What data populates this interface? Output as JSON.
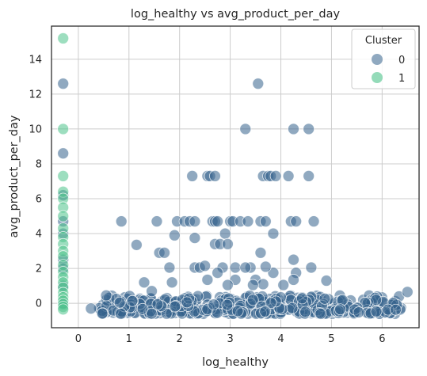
{
  "chart_data": {
    "type": "scatter",
    "title": "log_healthy vs avg_product_per_day",
    "xlabel": "log_healthy",
    "ylabel": "avg_product_per_day",
    "xlim": [
      -0.53,
      6.73
    ],
    "ylim": [
      -1.4,
      15.9
    ],
    "xticks": [
      "0",
      "1",
      "2",
      "3",
      "4",
      "5",
      "6"
    ],
    "yticks": [
      "0",
      "2",
      "4",
      "6",
      "8",
      "10",
      "12",
      "14"
    ],
    "grid": true,
    "legend": {
      "title": "Cluster",
      "placement": "top-right",
      "entries": [
        "0",
        "1"
      ]
    },
    "series": [
      {
        "name": "0",
        "color": "#35628c",
        "points": [
          [
            -0.3,
            12.6
          ],
          [
            -0.3,
            8.6
          ],
          [
            -0.3,
            6.2
          ],
          [
            -0.3,
            4.7
          ],
          [
            -0.3,
            4.0
          ],
          [
            -0.3,
            2.5
          ],
          [
            -0.3,
            2.0
          ],
          [
            -0.3,
            1.0
          ],
          [
            -0.3,
            0.0
          ],
          [
            0.55,
            0.45
          ],
          [
            0.85,
            4.7
          ],
          [
            1.15,
            3.35
          ],
          [
            1.3,
            1.2
          ],
          [
            1.55,
            4.7
          ],
          [
            1.6,
            2.9
          ],
          [
            1.7,
            2.9
          ],
          [
            1.8,
            2.05
          ],
          [
            1.85,
            1.2
          ],
          [
            1.9,
            3.9
          ],
          [
            1.95,
            4.7
          ],
          [
            2.1,
            4.7
          ],
          [
            2.2,
            4.7
          ],
          [
            2.3,
            3.75
          ],
          [
            2.3,
            4.7
          ],
          [
            2.25,
            7.3
          ],
          [
            2.3,
            2.05
          ],
          [
            2.4,
            2.05
          ],
          [
            2.55,
            7.3
          ],
          [
            2.6,
            7.3
          ],
          [
            2.65,
            4.7
          ],
          [
            2.7,
            7.3
          ],
          [
            2.7,
            4.7
          ],
          [
            2.75,
            4.7
          ],
          [
            2.7,
            3.4
          ],
          [
            2.8,
            3.4
          ],
          [
            2.85,
            2.05
          ],
          [
            2.9,
            4.0
          ],
          [
            2.95,
            3.4
          ],
          [
            3.0,
            4.7
          ],
          [
            3.05,
            4.7
          ],
          [
            3.1,
            2.05
          ],
          [
            3.2,
            4.7
          ],
          [
            3.3,
            10.0
          ],
          [
            3.35,
            4.7
          ],
          [
            3.4,
            2.05
          ],
          [
            3.55,
            12.6
          ],
          [
            3.6,
            4.7
          ],
          [
            3.6,
            2.9
          ],
          [
            3.65,
            7.3
          ],
          [
            3.7,
            4.7
          ],
          [
            3.75,
            7.3
          ],
          [
            3.8,
            7.3
          ],
          [
            3.85,
            4.0
          ],
          [
            3.9,
            7.3
          ],
          [
            3.85,
            1.75
          ],
          [
            4.15,
            7.3
          ],
          [
            4.2,
            4.7
          ],
          [
            4.25,
            10.0
          ],
          [
            4.3,
            4.7
          ],
          [
            4.25,
            2.5
          ],
          [
            4.3,
            1.75
          ],
          [
            4.55,
            10.0
          ],
          [
            4.55,
            7.3
          ],
          [
            4.6,
            2.05
          ],
          [
            4.65,
            4.7
          ],
          [
            4.9,
            1.3
          ],
          [
            3.1,
            1.35
          ],
          [
            3.5,
            1.35
          ],
          [
            3.65,
            1.1
          ],
          [
            4.25,
            1.35
          ],
          [
            2.5,
            2.15
          ],
          [
            2.75,
            1.75
          ],
          [
            2.55,
            1.35
          ],
          [
            2.95,
            1.05
          ],
          [
            3.3,
            2.05
          ],
          [
            3.7,
            2.1
          ],
          [
            3.45,
            1.05
          ],
          [
            4.05,
            1.05
          ],
          [
            1.45,
            0.7
          ],
          [
            6.5,
            0.65
          ],
          [
            0.25,
            -0.3
          ]
        ]
      },
      {
        "name": "1",
        "color": "#4cc38a",
        "points": [
          [
            -0.3,
            15.2
          ],
          [
            -0.3,
            10.0
          ],
          [
            -0.3,
            7.3
          ],
          [
            -0.3,
            6.4
          ],
          [
            -0.3,
            6.0
          ],
          [
            -0.3,
            5.5
          ],
          [
            -0.3,
            5.0
          ],
          [
            -0.3,
            4.3
          ],
          [
            -0.3,
            3.8
          ],
          [
            -0.3,
            3.4
          ],
          [
            -0.3,
            3.0
          ],
          [
            -0.3,
            2.7
          ],
          [
            -0.3,
            2.2
          ],
          [
            -0.3,
            1.8
          ],
          [
            -0.3,
            1.5
          ],
          [
            -0.3,
            1.2
          ],
          [
            -0.3,
            0.9
          ],
          [
            -0.3,
            0.6
          ],
          [
            -0.3,
            0.35
          ],
          [
            -0.3,
            0.15
          ],
          [
            -0.3,
            -0.05
          ],
          [
            -0.3,
            -0.2
          ],
          [
            -0.3,
            -0.35
          ]
        ]
      }
    ],
    "dense_band": {
      "series": "0",
      "x_range": [
        0.4,
        6.4
      ],
      "y_range": [
        -0.6,
        0.45
      ],
      "count": 420
    }
  }
}
